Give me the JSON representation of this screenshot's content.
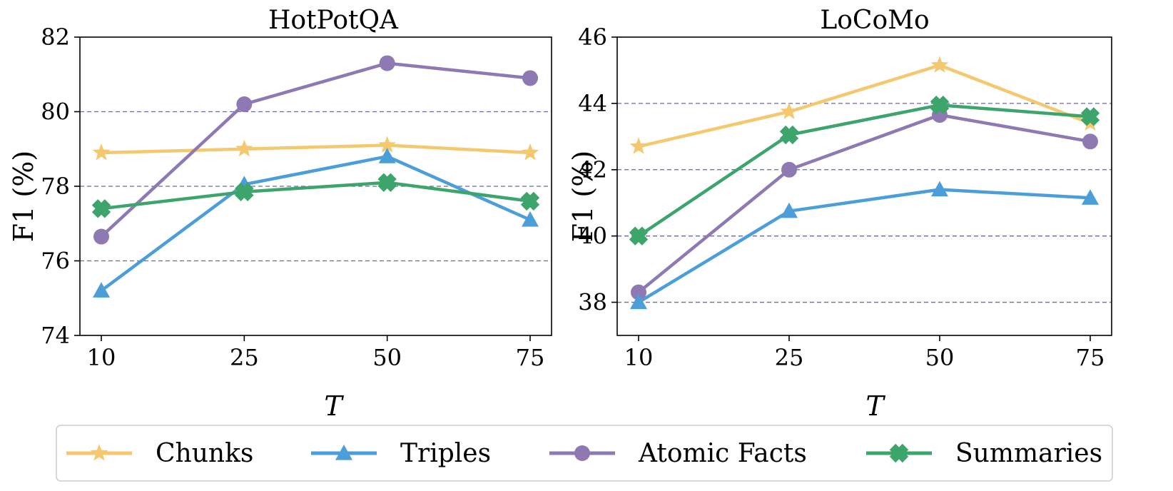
{
  "chart_data": [
    {
      "type": "line",
      "title": "HotPotQA",
      "xlabel": "T",
      "ylabel": "F1 (%)",
      "x": [
        "10",
        "25",
        "50",
        "75"
      ],
      "ylim": [
        74,
        82
      ],
      "yticks": [
        "74",
        "76",
        "78",
        "80",
        "82"
      ],
      "grid": "horizontal dashed",
      "series": [
        {
          "name": "Chunks",
          "values": [
            78.9,
            79.0,
            79.1,
            78.9
          ]
        },
        {
          "name": "Triples",
          "values": [
            75.2,
            78.05,
            78.8,
            77.1
          ]
        },
        {
          "name": "Atomic Facts",
          "values": [
            76.65,
            80.2,
            81.3,
            80.9
          ]
        },
        {
          "name": "Summaries",
          "values": [
            77.4,
            77.85,
            78.1,
            77.6
          ]
        }
      ]
    },
    {
      "type": "line",
      "title": "LoCoMo",
      "xlabel": "T",
      "ylabel": "F1 (%)",
      "x": [
        "10",
        "25",
        "50",
        "75"
      ],
      "ylim": [
        37,
        46
      ],
      "yticks": [
        "38",
        "40",
        "42",
        "44",
        "46"
      ],
      "grid": "horizontal dashed",
      "series": [
        {
          "name": "Chunks",
          "values": [
            42.7,
            43.75,
            45.15,
            43.4
          ]
        },
        {
          "name": "Triples",
          "values": [
            38.0,
            40.75,
            41.4,
            41.15
          ]
        },
        {
          "name": "Atomic Facts",
          "values": [
            38.3,
            42.0,
            43.65,
            42.85
          ]
        },
        {
          "name": "Summaries",
          "values": [
            40.0,
            43.05,
            43.95,
            43.6
          ]
        }
      ]
    }
  ],
  "legend": {
    "placement": "bottom-center",
    "items": [
      {
        "label": "Chunks",
        "marker": "star",
        "color": "#F4C86E"
      },
      {
        "label": "Triples",
        "marker": "triangle",
        "color": "#4C9ED9"
      },
      {
        "label": "Atomic Facts",
        "marker": "circle",
        "color": "#8F79B3"
      },
      {
        "label": "Summaries",
        "marker": "x-cross",
        "color": "#3DA56B"
      }
    ]
  },
  "colors": {
    "Chunks": "#F4C86E",
    "Triples": "#4C9ED9",
    "Atomic Facts": "#8F79B3",
    "Summaries": "#3DA56B",
    "grid": "#6A6A9E"
  }
}
